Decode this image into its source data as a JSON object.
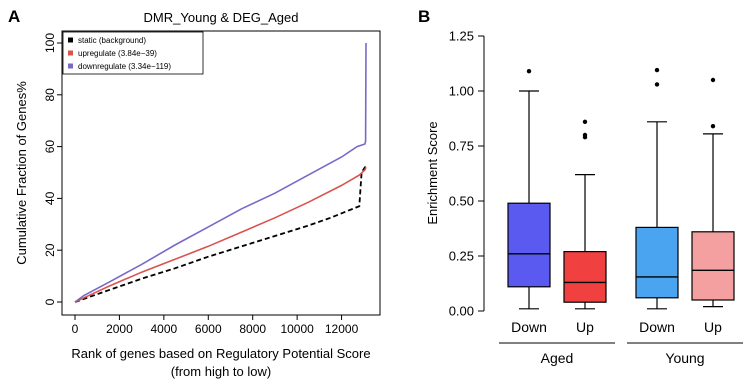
{
  "chart_data": [
    {
      "panel_label": "A",
      "type": "line",
      "title": "DMR_Young & DEG_Aged",
      "xlabel": "Rank of genes based on Regulatory Potential Score",
      "xlabel2": "(from high to low)",
      "ylabel": "Cumulative Fraction of Genes%",
      "xlim": [
        0,
        13100
      ],
      "ylim": [
        0,
        100
      ],
      "x_ticks": [
        0,
        2000,
        4000,
        6000,
        8000,
        10000,
        12000
      ],
      "x_tick_labels": [
        "0",
        "2000",
        "4000",
        "6000",
        "8000",
        "10000",
        "12000"
      ],
      "y_ticks": [
        0,
        20,
        40,
        60,
        80,
        100
      ],
      "y_tick_labels": [
        "0",
        "20",
        "40",
        "60",
        "80",
        "100"
      ],
      "legend_position": "top-left",
      "series": [
        {
          "name": "static (background)",
          "color": "#000000",
          "dashed": true,
          "x": [
            0,
            500,
            1500,
            3000,
            4500,
            6000,
            7500,
            9000,
            10500,
            11500,
            12800,
            12900,
            13050,
            13100
          ],
          "y": [
            0,
            1.5,
            4.5,
            9,
            13,
            17.5,
            21.5,
            25.5,
            29.5,
            32.5,
            37,
            50,
            52,
            52
          ]
        },
        {
          "name": "upregulate (3.84e−39)",
          "color": "#d9534f",
          "dashed": false,
          "x": [
            0,
            500,
            1500,
            3000,
            4500,
            6000,
            7500,
            9000,
            10500,
            12000,
            12800,
            13050,
            13100
          ],
          "y": [
            0,
            2,
            6,
            11.5,
            16.5,
            21.5,
            27,
            32.5,
            38.5,
            45,
            49,
            51,
            52
          ]
        },
        {
          "name": "downregulate (3.34e−119)",
          "color": "#7b68c6",
          "dashed": false,
          "x": [
            0,
            400,
            1500,
            3000,
            4500,
            6000,
            7500,
            9000,
            10500,
            12000,
            12700,
            13050,
            13080,
            13100
          ],
          "y": [
            0,
            2.5,
            7.5,
            14.5,
            22,
            29,
            36,
            42,
            49,
            56,
            60,
            61,
            62,
            100
          ]
        }
      ]
    },
    {
      "panel_label": "B",
      "type": "box",
      "ylabel": "Enrichment Score",
      "ylim": [
        0,
        1.25
      ],
      "y_ticks": [
        0,
        0.25,
        0.5,
        0.75,
        1.0,
        1.25
      ],
      "y_tick_labels": [
        "0.00",
        "0.25",
        "0.50",
        "0.75",
        "1.00",
        "1.25"
      ],
      "groups": [
        "Aged",
        "Young"
      ],
      "boxes": [
        {
          "group": "Aged",
          "label": "Down",
          "color": "#5a5af0",
          "whisker_low": 0.01,
          "q1": 0.11,
          "median": 0.26,
          "q3": 0.49,
          "whisker_high": 1.0,
          "outliers": [
            1.09
          ]
        },
        {
          "group": "Aged",
          "label": "Up",
          "color": "#f04040",
          "whisker_low": 0.01,
          "q1": 0.04,
          "median": 0.13,
          "q3": 0.27,
          "whisker_high": 0.62,
          "outliers": [
            0.79,
            0.8,
            0.86
          ]
        },
        {
          "group": "Young",
          "label": "Down",
          "color": "#4aa4f0",
          "whisker_low": 0.01,
          "q1": 0.06,
          "median": 0.155,
          "q3": 0.38,
          "whisker_high": 0.86,
          "outliers": [
            1.03,
            1.095
          ]
        },
        {
          "group": "Young",
          "label": "Up",
          "color": "#f5a0a0",
          "whisker_low": 0.02,
          "q1": 0.05,
          "median": 0.185,
          "q3": 0.36,
          "whisker_high": 0.805,
          "outliers": [
            0.84,
            1.05
          ]
        }
      ]
    }
  ]
}
